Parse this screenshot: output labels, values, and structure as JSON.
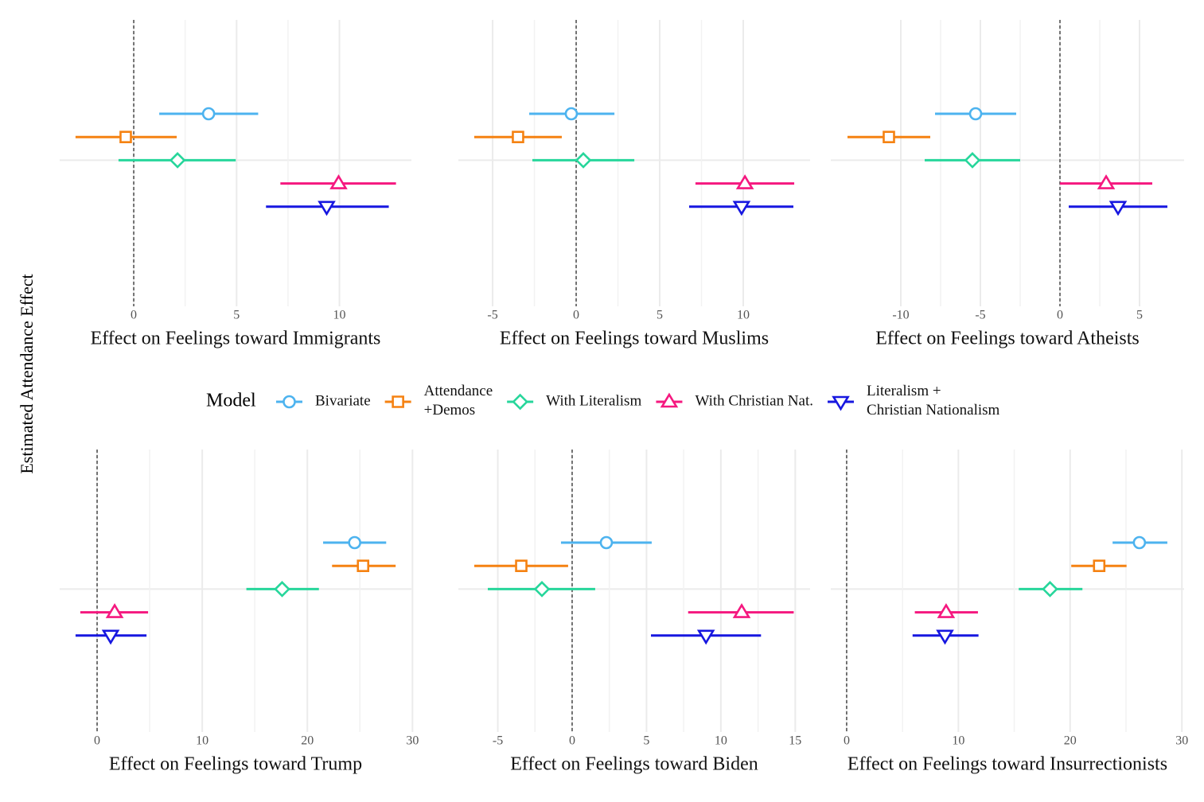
{
  "ylabel": "Estimated Attendance Effect",
  "legend_title": "Model",
  "chart_data": [
    {
      "type": "dot-whisker",
      "xlabel": "Effect on Feelings toward Immigrants",
      "xlim": [
        -3.6,
        13.5
      ],
      "xticks": [
        0,
        5,
        10
      ],
      "series": [
        {
          "name": "Bivariate",
          "color": "#4db3ef",
          "marker": "circle",
          "values": [
            3.64
          ],
          "lower": [
            1.24
          ],
          "upper": [
            6.05
          ]
        },
        {
          "name": "Attendance\n+Demos",
          "color": "#f58212",
          "marker": "square",
          "values": [
            -0.39
          ],
          "lower": [
            -2.83
          ],
          "upper": [
            2.09
          ]
        },
        {
          "name": "With Literalism",
          "color": "#27d69b",
          "marker": "diamond",
          "values": [
            2.13
          ],
          "lower": [
            -0.74
          ],
          "upper": [
            4.96
          ]
        },
        {
          "name": "With Christian Nat.",
          "color": "#f5187f",
          "marker": "triangle-up",
          "values": [
            9.96
          ],
          "lower": [
            7.13
          ],
          "upper": [
            12.75
          ]
        },
        {
          "name": "Literalism +\nChristian Nationalism",
          "color": "#1717e0",
          "marker": "triangle-down",
          "values": [
            9.38
          ],
          "lower": [
            6.43
          ],
          "upper": [
            12.4
          ]
        }
      ]
    },
    {
      "type": "dot-whisker",
      "xlabel": "Effect on Feelings toward Muslims",
      "xlim": [
        -7.05,
        14.0
      ],
      "xticks": [
        -5,
        0,
        5,
        10
      ],
      "series": [
        {
          "name": "Bivariate",
          "color": "#4db3ef",
          "marker": "circle",
          "values": [
            -0.29
          ],
          "lower": [
            -2.81
          ],
          "upper": [
            2.29
          ]
        },
        {
          "name": "Attendance\n+Demos",
          "color": "#f58212",
          "marker": "square",
          "values": [
            -3.48
          ],
          "lower": [
            -6.1
          ],
          "upper": [
            -0.86
          ]
        },
        {
          "name": "With Literalism",
          "color": "#27d69b",
          "marker": "diamond",
          "values": [
            0.43
          ],
          "lower": [
            -2.62
          ],
          "upper": [
            3.48
          ]
        },
        {
          "name": "With Christian Nat.",
          "color": "#f5187f",
          "marker": "triangle-up",
          "values": [
            10.1
          ],
          "lower": [
            7.14
          ],
          "upper": [
            13.05
          ]
        },
        {
          "name": "Literalism +\nChristian Nationalism",
          "color": "#1717e0",
          "marker": "triangle-down",
          "values": [
            9.9
          ],
          "lower": [
            6.76
          ],
          "upper": [
            13.0
          ]
        }
      ]
    },
    {
      "type": "dot-whisker",
      "xlabel": "Effect on Feelings toward Atheists",
      "xlim": [
        -14.4,
        7.8
      ],
      "xticks": [
        -10,
        -5,
        0,
        5
      ],
      "series": [
        {
          "name": "Bivariate",
          "color": "#4db3ef",
          "marker": "circle",
          "values": [
            -5.3
          ],
          "lower": [
            -7.85
          ],
          "upper": [
            -2.75
          ]
        },
        {
          "name": "Attendance\n+Demos",
          "color": "#f58212",
          "marker": "square",
          "values": [
            -10.75
          ],
          "lower": [
            -13.35
          ],
          "upper": [
            -8.15
          ]
        },
        {
          "name": "With Literalism",
          "color": "#27d69b",
          "marker": "diamond",
          "values": [
            -5.5
          ],
          "lower": [
            -8.5
          ],
          "upper": [
            -2.5
          ]
        },
        {
          "name": "With Christian Nat.",
          "color": "#f5187f",
          "marker": "triangle-up",
          "values": [
            2.9
          ],
          "lower": [
            0
          ],
          "upper": [
            5.8
          ]
        },
        {
          "name": "Literalism +\nChristian Nationalism",
          "color": "#1717e0",
          "marker": "triangle-down",
          "values": [
            3.65
          ],
          "lower": [
            0.55
          ],
          "upper": [
            6.75
          ]
        }
      ]
    },
    {
      "type": "dot-whisker",
      "xlabel": "Effect on Feelings toward Trump",
      "xlim": [
        -3.56,
        29.9
      ],
      "xticks": [
        0,
        10,
        20,
        30
      ],
      "series": [
        {
          "name": "Bivariate",
          "color": "#4db3ef",
          "marker": "circle",
          "values": [
            24.5
          ],
          "lower": [
            21.5
          ],
          "upper": [
            27.5
          ]
        },
        {
          "name": "Attendance\n+Demos",
          "color": "#f58212",
          "marker": "square",
          "values": [
            25.3
          ],
          "lower": [
            22.35
          ],
          "upper": [
            28.4
          ]
        },
        {
          "name": "With Literalism",
          "color": "#27d69b",
          "marker": "diamond",
          "values": [
            17.6
          ],
          "lower": [
            14.2
          ],
          "upper": [
            21.1
          ]
        },
        {
          "name": "With Christian Nat.",
          "color": "#f5187f",
          "marker": "triangle-up",
          "values": [
            1.67
          ],
          "lower": [
            -1.6
          ],
          "upper": [
            4.85
          ]
        },
        {
          "name": "Literalism +\nChristian Nationalism",
          "color": "#1717e0",
          "marker": "triangle-down",
          "values": [
            1.29
          ],
          "lower": [
            -2.05
          ],
          "upper": [
            4.7
          ]
        }
      ]
    },
    {
      "type": "dot-whisker",
      "xlabel": "Effect on Feelings toward Biden",
      "xlim": [
        -7.65,
        16.0
      ],
      "xticks": [
        -5,
        0,
        5,
        10,
        15
      ],
      "series": [
        {
          "name": "Bivariate",
          "color": "#4db3ef",
          "marker": "circle",
          "values": [
            2.3
          ],
          "lower": [
            -0.75
          ],
          "upper": [
            5.35
          ]
        },
        {
          "name": "Attendance\n+Demos",
          "color": "#f58212",
          "marker": "square",
          "values": [
            -3.42
          ],
          "lower": [
            -6.58
          ],
          "upper": [
            -0.27
          ]
        },
        {
          "name": "With Literalism",
          "color": "#27d69b",
          "marker": "diamond",
          "values": [
            -2.03
          ],
          "lower": [
            -5.67
          ],
          "upper": [
            1.55
          ]
        },
        {
          "name": "With Christian Nat.",
          "color": "#f5187f",
          "marker": "triangle-up",
          "values": [
            11.4
          ],
          "lower": [
            7.8
          ],
          "upper": [
            14.9
          ]
        },
        {
          "name": "Literalism +\nChristian Nationalism",
          "color": "#1717e0",
          "marker": "triangle-down",
          "values": [
            9.0
          ],
          "lower": [
            5.3
          ],
          "upper": [
            12.7
          ]
        }
      ]
    },
    {
      "type": "dot-whisker",
      "xlabel": "Effect on Feelings toward Insurrectionists",
      "xlim": [
        -1.42,
        30.2
      ],
      "xticks": [
        0,
        10,
        20,
        30
      ],
      "series": [
        {
          "name": "Bivariate",
          "color": "#4db3ef",
          "marker": "circle",
          "values": [
            26.2
          ],
          "lower": [
            23.8
          ],
          "upper": [
            28.7
          ]
        },
        {
          "name": "Attendance\n+Demos",
          "color": "#f58212",
          "marker": "square",
          "values": [
            22.6
          ],
          "lower": [
            20.1
          ],
          "upper": [
            25.05
          ]
        },
        {
          "name": "With Literalism",
          "color": "#27d69b",
          "marker": "diamond",
          "values": [
            18.2
          ],
          "lower": [
            15.4
          ],
          "upper": [
            21.1
          ]
        },
        {
          "name": "With Christian Nat.",
          "color": "#f5187f",
          "marker": "triangle-up",
          "values": [
            8.9
          ],
          "lower": [
            6.1
          ],
          "upper": [
            11.75
          ]
        },
        {
          "name": "Literalism +\nChristian Nationalism",
          "color": "#1717e0",
          "marker": "triangle-down",
          "values": [
            8.8
          ],
          "lower": [
            5.9
          ],
          "upper": [
            11.8
          ]
        }
      ]
    }
  ]
}
